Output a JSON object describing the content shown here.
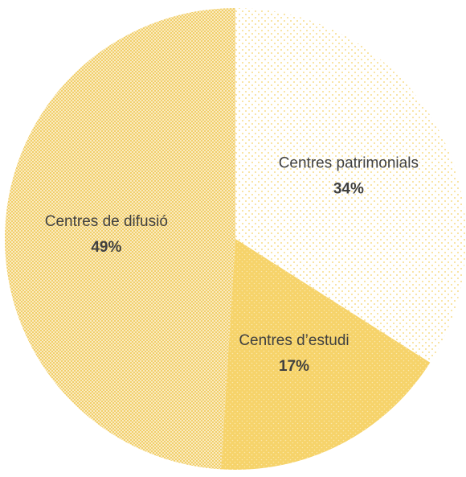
{
  "chart_data": {
    "type": "pie",
    "categories": [
      "Centres patrimonials",
      "Centres d’estudi",
      "Centres de difusió"
    ],
    "values": [
      34,
      17,
      49
    ],
    "value_labels": [
      "34%",
      "17%",
      "49%"
    ],
    "colors": [
      "#f6d36a",
      "#f6d36a",
      "#f1cf6c"
    ]
  }
}
